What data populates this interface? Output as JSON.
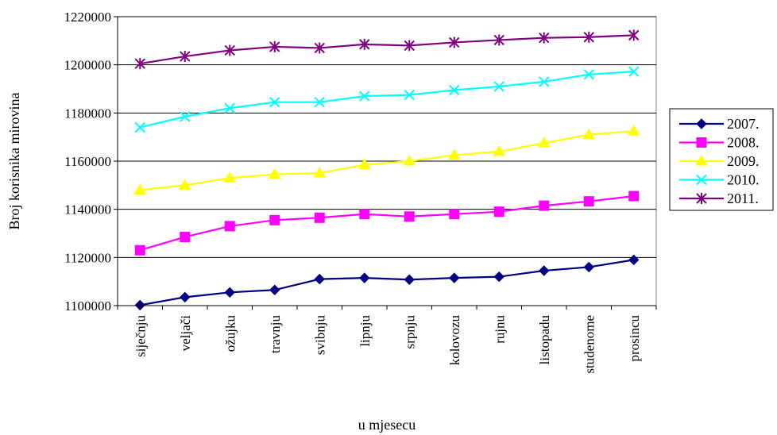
{
  "chart_data": {
    "type": "line",
    "title": "",
    "xlabel": "u mjesecu",
    "ylabel": "Broj korisnika mirovina",
    "categories": [
      "siječnju",
      "veljači",
      "ožujku",
      "travnju",
      "svibnju",
      "lipnju",
      "srpnju",
      "kolovozu",
      "rujnu",
      "listopadu",
      "studenome",
      "prosincu"
    ],
    "ylim": [
      1100000,
      1220000
    ],
    "yticks": [
      1100000,
      1120000,
      1140000,
      1160000,
      1180000,
      1200000,
      1220000
    ],
    "ytick_labels": [
      "1100000",
      "1120000",
      "1140000",
      "1160000",
      "1180000",
      "1200000",
      "1220000"
    ],
    "grid": true,
    "legend_position": "right",
    "series": [
      {
        "name": "2007.",
        "color": "#000080",
        "marker": "diamond",
        "values": [
          1100200,
          1103500,
          1105500,
          1106500,
          1111000,
          1111500,
          1110800,
          1111500,
          1112000,
          1114500,
          1116000,
          1119000
        ]
      },
      {
        "name": "2008.",
        "color": "#ff00ff",
        "marker": "square",
        "values": [
          1123000,
          1128500,
          1133000,
          1135500,
          1136500,
          1138000,
          1137000,
          1138000,
          1139000,
          1141500,
          1143300,
          1145500
        ]
      },
      {
        "name": "2009.",
        "color": "#ffff00",
        "marker": "triangle",
        "values": [
          1148000,
          1150000,
          1153000,
          1154500,
          1155000,
          1158500,
          1160000,
          1162500,
          1164000,
          1167500,
          1171000,
          1172500
        ]
      },
      {
        "name": "2010.",
        "color": "#00ffff",
        "marker": "x",
        "values": [
          1174000,
          1178500,
          1182000,
          1184500,
          1184500,
          1187000,
          1187500,
          1189500,
          1191000,
          1193000,
          1196000,
          1197200
        ]
      },
      {
        "name": "2011.",
        "color": "#800080",
        "marker": "asterisk",
        "values": [
          1200500,
          1203500,
          1206000,
          1207500,
          1207000,
          1208500,
          1208000,
          1209300,
          1210300,
          1211200,
          1211500,
          1212300
        ]
      }
    ]
  }
}
